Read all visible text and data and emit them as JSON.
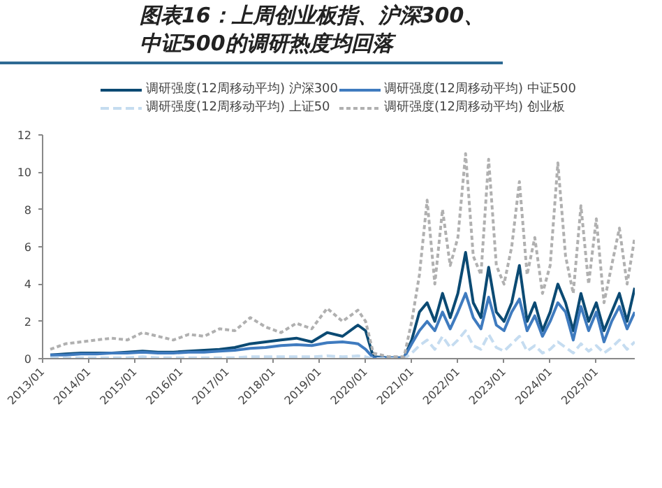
{
  "chart_data": {
    "type": "line",
    "title": "图表16：上周创业板指、沪深300、中证500的调研热度均回落",
    "x": [
      "2013-03",
      "2013-07",
      "2013-11",
      "2014-03",
      "2014-07",
      "2014-11",
      "2015-03",
      "2015-07",
      "2015-11",
      "2016-03",
      "2016-07",
      "2016-11",
      "2017-03",
      "2017-07",
      "2017-11",
      "2018-03",
      "2018-07",
      "2018-11",
      "2019-03",
      "2019-07",
      "2019-11",
      "2020-01",
      "2020-03",
      "2020-07",
      "2020-11",
      "2021-01",
      "2021-03",
      "2021-05",
      "2021-07",
      "2021-09",
      "2021-11",
      "2022-01",
      "2022-03",
      "2022-05",
      "2022-07",
      "2022-09",
      "2022-11",
      "2023-01",
      "2023-03",
      "2023-05",
      "2023-07",
      "2023-09",
      "2023-11",
      "2024-01",
      "2024-03",
      "2024-05",
      "2024-07",
      "2024-09",
      "2024-11",
      "2025-01",
      "2025-03",
      "2025-05",
      "2025-07",
      "2025-09",
      "2025-11"
    ],
    "series": [
      {
        "name": "调研强度(12周移动平均) 沪深300",
        "color": "#0b4a73",
        "line_style": "solid",
        "values": [
          0.2,
          0.25,
          0.3,
          0.3,
          0.3,
          0.35,
          0.4,
          0.35,
          0.35,
          0.4,
          0.45,
          0.5,
          0.6,
          0.8,
          0.9,
          1.0,
          1.1,
          0.9,
          1.4,
          1.2,
          1.8,
          1.5,
          0.1,
          0.05,
          0.05,
          1.0,
          2.5,
          3.0,
          2.0,
          3.5,
          2.2,
          3.5,
          5.7,
          3.0,
          2.2,
          4.9,
          2.5,
          2.0,
          3.0,
          5.0,
          2.0,
          3.0,
          1.5,
          2.5,
          4.0,
          3.0,
          1.5,
          3.5,
          2.0,
          3.0,
          1.5,
          2.5,
          3.5,
          2.0,
          3.8
        ]
      },
      {
        "name": "调研强度(12周移动平均) 中证500",
        "color": "#3f7bbf",
        "line_style": "solid",
        "values": [
          0.2,
          0.2,
          0.25,
          0.25,
          0.3,
          0.3,
          0.35,
          0.3,
          0.3,
          0.35,
          0.35,
          0.4,
          0.45,
          0.55,
          0.6,
          0.7,
          0.75,
          0.7,
          0.85,
          0.9,
          0.8,
          0.5,
          0.05,
          0.05,
          0.05,
          0.8,
          1.5,
          2.0,
          1.5,
          2.5,
          1.6,
          2.5,
          3.5,
          2.2,
          1.6,
          3.3,
          1.8,
          1.5,
          2.5,
          3.2,
          1.5,
          2.3,
          1.2,
          2.0,
          3.0,
          2.5,
          1.0,
          2.8,
          1.5,
          2.5,
          0.9,
          2.0,
          2.8,
          1.6,
          2.5
        ]
      },
      {
        "name": "调研强度(12周移动平均) 上证50",
        "color": "#c5dcf0",
        "line_style": "dashed",
        "values": [
          0.05,
          0.05,
          0.05,
          0.05,
          0.05,
          0.05,
          0.1,
          0.05,
          0.05,
          0.05,
          0.05,
          0.05,
          0.05,
          0.1,
          0.1,
          0.1,
          0.1,
          0.1,
          0.15,
          0.1,
          0.15,
          0.1,
          0.0,
          0.0,
          0.0,
          0.3,
          0.7,
          1.0,
          0.5,
          1.2,
          0.6,
          1.0,
          1.5,
          0.7,
          0.5,
          1.3,
          0.6,
          0.4,
          0.8,
          1.2,
          0.4,
          0.7,
          0.3,
          0.5,
          0.9,
          0.6,
          0.3,
          0.8,
          0.4,
          0.7,
          0.3,
          0.6,
          1.0,
          0.5,
          0.9
        ]
      },
      {
        "name": "调研强度(12周移动平均) 创业板",
        "color": "#b0b0b0",
        "line_style": "dotted",
        "values": [
          0.5,
          0.8,
          0.9,
          1.0,
          1.1,
          1.0,
          1.4,
          1.2,
          1.0,
          1.3,
          1.2,
          1.6,
          1.5,
          2.2,
          1.7,
          1.4,
          1.9,
          1.6,
          2.7,
          2.0,
          2.6,
          2.0,
          0.3,
          0.1,
          0.1,
          2.0,
          4.5,
          8.5,
          4.0,
          8.0,
          5.0,
          6.5,
          11.0,
          5.5,
          4.5,
          10.7,
          5.0,
          4.0,
          6.0,
          9.5,
          4.5,
          6.5,
          3.5,
          5.0,
          10.5,
          5.5,
          3.5,
          8.2,
          4.0,
          7.5,
          3.0,
          5.0,
          7.0,
          4.0,
          6.5
        ]
      }
    ],
    "xlim": [
      "2013-01",
      "2025-11"
    ],
    "xticks": [
      {
        "value": "2013-01",
        "label": "2013/01"
      },
      {
        "value": "2014-01",
        "label": "2014/01"
      },
      {
        "value": "2015-01",
        "label": "2015/01"
      },
      {
        "value": "2016-01",
        "label": "2016/01"
      },
      {
        "value": "2017-01",
        "label": "2017/01"
      },
      {
        "value": "2018-01",
        "label": "2018/01"
      },
      {
        "value": "2019-01",
        "label": "2019/01"
      },
      {
        "value": "2020-01",
        "label": "2020/01"
      },
      {
        "value": "2021-01",
        "label": "2021/01"
      },
      {
        "value": "2022-01",
        "label": "2022/01"
      },
      {
        "value": "2023-01",
        "label": "2023/01"
      },
      {
        "value": "2024-01",
        "label": "2024/01"
      },
      {
        "value": "2025-01",
        "label": "2025/01"
      }
    ],
    "ylim": [
      0,
      12
    ],
    "yticks": [
      0,
      2,
      4,
      6,
      8,
      10,
      12
    ],
    "legend": "top"
  }
}
